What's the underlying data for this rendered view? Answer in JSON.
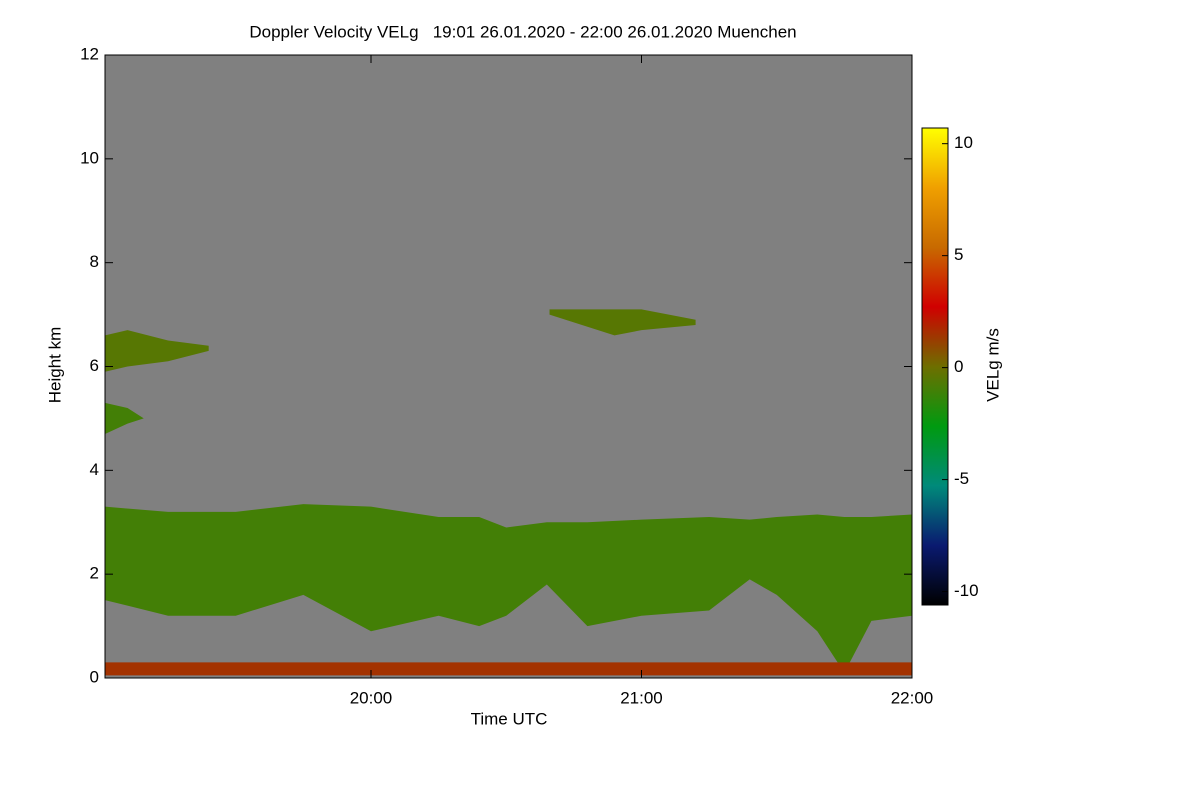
{
  "chart_data": {
    "type": "heatmap",
    "title": "Doppler Velocity VELg   19:01 26.01.2020 - 22:00 26.01.2020 Muenchen",
    "x_label": "Time UTC",
    "y_label": "Height km",
    "colorbar_label": "VELg m/s",
    "xlim": [
      19.0167,
      22
    ],
    "xticks": [
      {
        "value": 20,
        "label": "20:00"
      },
      {
        "value": 21,
        "label": "21:00"
      },
      {
        "value": 22,
        "label": "22:00"
      }
    ],
    "ylim": [
      0,
      12
    ],
    "yticks": [
      0,
      2,
      4,
      6,
      8,
      10,
      12
    ],
    "clim": [
      -10.6,
      10.7
    ],
    "cticks": [
      -10,
      -5,
      0,
      5,
      10
    ],
    "colormap": [
      "#000000",
      "#0a1a70",
      "#008a7a",
      "#009a10",
      "#6e6e00",
      "#d00000",
      "#c86a00",
      "#f0a000",
      "#ffff00"
    ],
    "background_color": "#808080",
    "layers": [
      {
        "x": [
          19.0167,
          19.25,
          19.5,
          19.75,
          20.0,
          20.25,
          20.4,
          20.5,
          20.65,
          20.8,
          21.0,
          21.25,
          21.4,
          21.5,
          21.65,
          21.75,
          21.85,
          22.0
        ],
        "top": [
          3.3,
          3.2,
          3.2,
          3.35,
          3.3,
          3.1,
          3.1,
          2.9,
          3.0,
          3.0,
          3.05,
          3.1,
          3.05,
          3.1,
          3.15,
          3.1,
          3.1,
          3.15
        ],
        "base": [
          1.5,
          1.2,
          1.2,
          1.6,
          0.9,
          1.2,
          1.0,
          1.2,
          1.8,
          1.0,
          1.2,
          1.3,
          1.9,
          1.6,
          0.9,
          0.1,
          1.1,
          1.2
        ],
        "value": -1
      },
      {
        "x": [
          19.0167,
          19.1,
          19.25,
          19.4
        ],
        "top": [
          6.6,
          6.7,
          6.5,
          6.4
        ],
        "base": [
          5.9,
          6.0,
          6.1,
          6.3
        ],
        "value": -0.5
      },
      {
        "x": [
          19.0167,
          19.1,
          19.16
        ],
        "top": [
          5.3,
          5.2,
          5.0
        ],
        "base": [
          4.7,
          4.9,
          5.0
        ],
        "value": -1
      },
      {
        "x": [
          20.66,
          20.9,
          21.0,
          21.2
        ],
        "top": [
          7.1,
          7.1,
          7.1,
          6.9
        ],
        "base": [
          7.0,
          6.6,
          6.7,
          6.8
        ],
        "value": -0.5
      },
      {
        "x": [
          19.0167,
          22
        ],
        "top": [
          0.3,
          0.3
        ],
        "base": [
          0.05,
          0.05
        ],
        "value": 1.5
      }
    ]
  }
}
